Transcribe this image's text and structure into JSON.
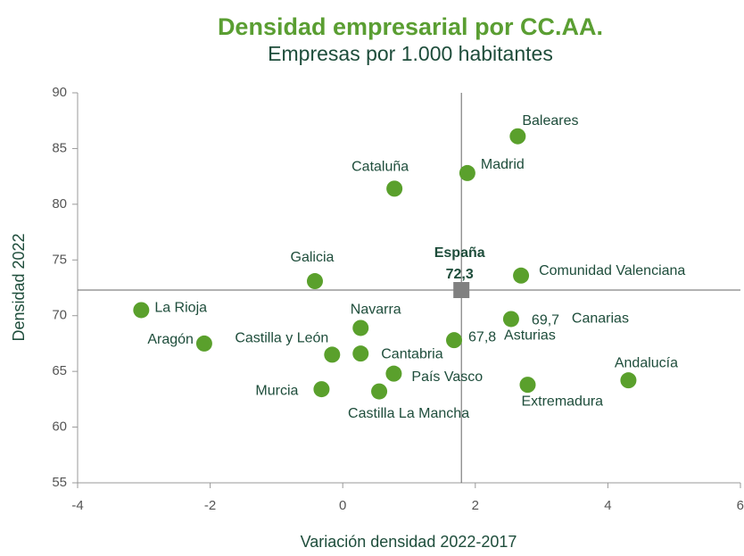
{
  "chart_data": {
    "type": "scatter",
    "title": "Densidad empresarial por CC.AA.",
    "subtitle": "Empresas por 1.000 habitantes",
    "x_label": "Variación densidad 2022-2017",
    "y_label": "Densidad 2022",
    "xlim": [
      -4,
      6
    ],
    "xticks": [
      -4,
      -2,
      0,
      2,
      4,
      6
    ],
    "ylim": [
      55,
      90
    ],
    "yticks": [
      55,
      60,
      65,
      70,
      75,
      80,
      85,
      90
    ],
    "color": "#5aa02c",
    "point_labels": [
      "Baleares",
      "Madrid",
      "Cataluña",
      "Galicia",
      "Comunidad Valenciana",
      "La Rioja",
      "Aragón",
      "Navarra",
      "Castilla y León",
      "Cantabria",
      "Asturias",
      "Canarias",
      "País Vasco",
      "Murcia",
      "Castilla La Mancha",
      "Extremadura",
      "Andalucía"
    ],
    "x": [
      2.64,
      1.88,
      0.78,
      -0.42,
      2.69,
      -3.04,
      -2.09,
      0.27,
      -0.16,
      0.27,
      1.68,
      2.54,
      0.77,
      -0.32,
      0.55,
      2.79,
      4.31
    ],
    "values": [
      86.1,
      82.8,
      81.4,
      73.1,
      73.6,
      70.5,
      67.5,
      68.9,
      66.5,
      66.6,
      67.8,
      69.7,
      64.8,
      63.4,
      63.2,
      63.8,
      64.2
    ],
    "value_labels": [
      null,
      null,
      null,
      null,
      null,
      null,
      null,
      null,
      null,
      null,
      "67,8",
      "69,7",
      null,
      null,
      null,
      null,
      null
    ],
    "reference": {
      "name": "España",
      "x": 1.79,
      "y": 72.3,
      "value_label": "72,3",
      "color": "#808080"
    }
  }
}
